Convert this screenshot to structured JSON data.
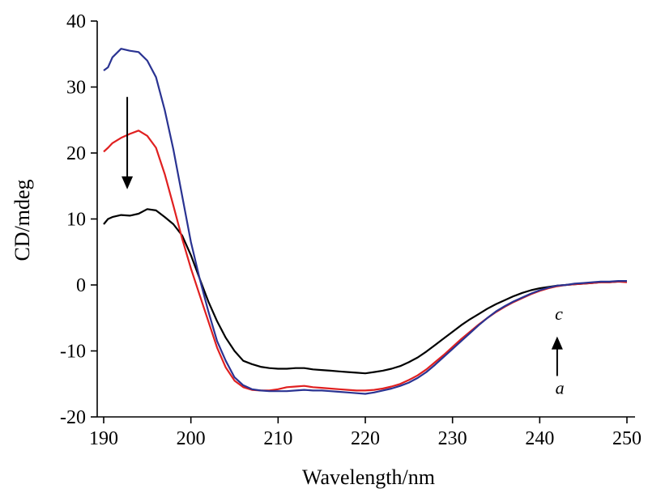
{
  "chart_data": {
    "type": "line",
    "title": "",
    "xlabel": "Wavelength/nm",
    "ylabel": "CD/mdeg",
    "xlim": [
      190,
      250
    ],
    "ylim": [
      -20,
      40
    ],
    "xticks": [
      190,
      200,
      210,
      220,
      230,
      240,
      250
    ],
    "yticks": [
      -20,
      -10,
      0,
      10,
      20,
      30,
      40
    ],
    "grid": false,
    "legend": "none",
    "series": [
      {
        "color": "#000000",
        "x": [
          190,
          190.5,
          191,
          192,
          193,
          194,
          195,
          196,
          197,
          198,
          199,
          200,
          201,
          202,
          203,
          204,
          205,
          206,
          207,
          208,
          209,
          210,
          211,
          212,
          213,
          214,
          215,
          216,
          217,
          218,
          219,
          220,
          221,
          222,
          223,
          224,
          225,
          226,
          227,
          228,
          229,
          230,
          231,
          232,
          233,
          234,
          235,
          236,
          237,
          238,
          239,
          240,
          241,
          242,
          243,
          244,
          245,
          246,
          247,
          248,
          249,
          250
        ],
        "y": [
          9.2,
          10.0,
          10.3,
          10.6,
          10.5,
          10.8,
          11.5,
          11.3,
          10.3,
          9.2,
          7.5,
          4.5,
          1.0,
          -2.5,
          -5.5,
          -8.0,
          -10.0,
          -11.5,
          -12.0,
          -12.4,
          -12.6,
          -12.7,
          -12.7,
          -12.6,
          -12.6,
          -12.8,
          -12.9,
          -13.0,
          -13.1,
          -13.2,
          -13.3,
          -13.4,
          -13.2,
          -13.0,
          -12.7,
          -12.3,
          -11.7,
          -11.0,
          -10.1,
          -9.1,
          -8.1,
          -7.1,
          -6.1,
          -5.2,
          -4.4,
          -3.6,
          -2.9,
          -2.3,
          -1.7,
          -1.2,
          -0.8,
          -0.5,
          -0.3,
          -0.1,
          0.0,
          0.1,
          0.2,
          0.3,
          0.4,
          0.4,
          0.5,
          0.5
        ]
      },
      {
        "color": "#e02020",
        "x": [
          190,
          190.5,
          191,
          192,
          193,
          194,
          195,
          196,
          197,
          198,
          199,
          200,
          201,
          202,
          203,
          204,
          205,
          206,
          207,
          208,
          209,
          210,
          211,
          212,
          213,
          214,
          215,
          216,
          217,
          218,
          219,
          220,
          221,
          222,
          223,
          224,
          225,
          226,
          227,
          228,
          229,
          230,
          231,
          232,
          233,
          234,
          235,
          236,
          237,
          238,
          239,
          240,
          241,
          242,
          243,
          244,
          245,
          246,
          247,
          248,
          249,
          250
        ],
        "y": [
          20.2,
          20.8,
          21.5,
          22.3,
          22.9,
          23.4,
          22.6,
          20.8,
          16.8,
          12.0,
          7.0,
          2.5,
          -1.5,
          -5.5,
          -9.5,
          -12.5,
          -14.5,
          -15.5,
          -15.9,
          -16.0,
          -16.0,
          -15.8,
          -15.5,
          -15.4,
          -15.3,
          -15.5,
          -15.6,
          -15.7,
          -15.8,
          -15.9,
          -16.0,
          -16.0,
          -15.9,
          -15.7,
          -15.4,
          -15.0,
          -14.4,
          -13.7,
          -12.8,
          -11.7,
          -10.6,
          -9.4,
          -8.2,
          -7.1,
          -6.0,
          -5.0,
          -4.1,
          -3.3,
          -2.6,
          -2.0,
          -1.4,
          -0.9,
          -0.5,
          -0.2,
          0.0,
          0.1,
          0.2,
          0.3,
          0.4,
          0.4,
          0.5,
          0.4
        ]
      },
      {
        "color": "#2a3392",
        "x": [
          190,
          190.5,
          191,
          192,
          193,
          194,
          195,
          196,
          197,
          198,
          199,
          200,
          201,
          202,
          203,
          204,
          205,
          206,
          207,
          208,
          209,
          210,
          211,
          212,
          213,
          214,
          215,
          216,
          217,
          218,
          219,
          220,
          221,
          222,
          223,
          224,
          225,
          226,
          227,
          228,
          229,
          230,
          231,
          232,
          233,
          234,
          235,
          236,
          237,
          238,
          239,
          240,
          241,
          242,
          243,
          244,
          245,
          246,
          247,
          248,
          249,
          250
        ],
        "y": [
          32.5,
          33.0,
          34.5,
          35.8,
          35.5,
          35.3,
          34.0,
          31.5,
          26.5,
          20.5,
          13.5,
          6.5,
          1.0,
          -4.0,
          -8.5,
          -11.5,
          -14.0,
          -15.2,
          -15.8,
          -16.0,
          -16.1,
          -16.1,
          -16.1,
          -16.0,
          -15.9,
          -16.0,
          -16.0,
          -16.1,
          -16.2,
          -16.3,
          -16.4,
          -16.5,
          -16.3,
          -16.0,
          -15.7,
          -15.3,
          -14.8,
          -14.1,
          -13.2,
          -12.1,
          -10.9,
          -9.7,
          -8.5,
          -7.3,
          -6.1,
          -5.0,
          -4.0,
          -3.2,
          -2.5,
          -1.9,
          -1.3,
          -0.8,
          -0.4,
          -0.1,
          0.0,
          0.2,
          0.3,
          0.4,
          0.5,
          0.5,
          0.6,
          0.6
        ]
      }
    ],
    "annotations": [
      {
        "text": "c",
        "x": 242.2,
        "y": -5.3
      },
      {
        "text": "a",
        "x": 242.3,
        "y": -16.5
      }
    ],
    "arrows": [
      {
        "direction": "down",
        "x": 192.7,
        "y_from": 28.5,
        "y_to": 14.5
      },
      {
        "direction": "up",
        "x": 242.0,
        "y_from": -13.8,
        "y_to": -7.8
      }
    ]
  }
}
